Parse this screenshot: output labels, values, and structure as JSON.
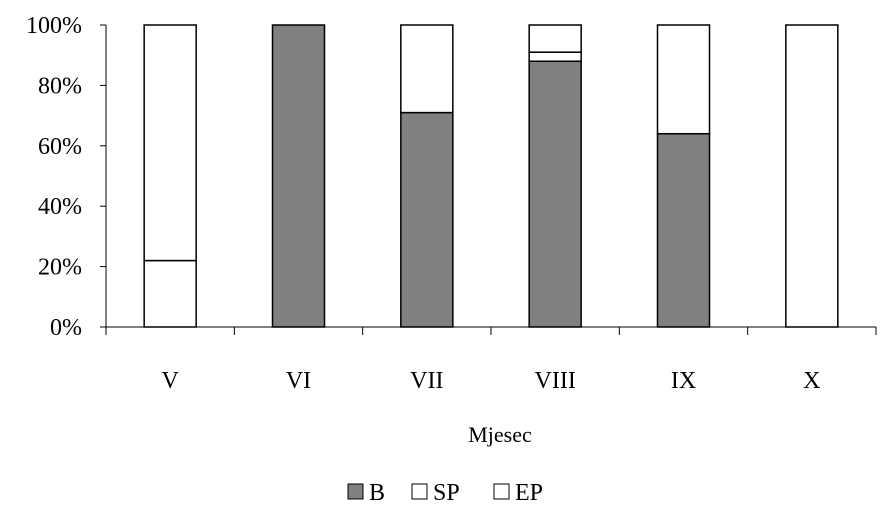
{
  "chart_data": {
    "type": "bar",
    "stacked": true,
    "percent": true,
    "categories": [
      "V",
      "VI",
      "VII",
      "VIII",
      "IX",
      "X"
    ],
    "series": [
      {
        "name": "B",
        "values": [
          0,
          100,
          71,
          88,
          64,
          0
        ],
        "color": "#808080"
      },
      {
        "name": "SP",
        "values": [
          22,
          0,
          0,
          3,
          0,
          0
        ],
        "color": "#ffffff"
      },
      {
        "name": "EP",
        "values": [
          78,
          0,
          29,
          9,
          36,
          100
        ],
        "color": "#ffffff"
      }
    ],
    "xlabel": "Mjesec",
    "ylabel": "",
    "ylim": [
      0,
      100
    ],
    "yticks": [
      "0%",
      "20%",
      "40%",
      "60%",
      "80%",
      "100%"
    ],
    "grid": false,
    "legend_position": "bottom"
  }
}
